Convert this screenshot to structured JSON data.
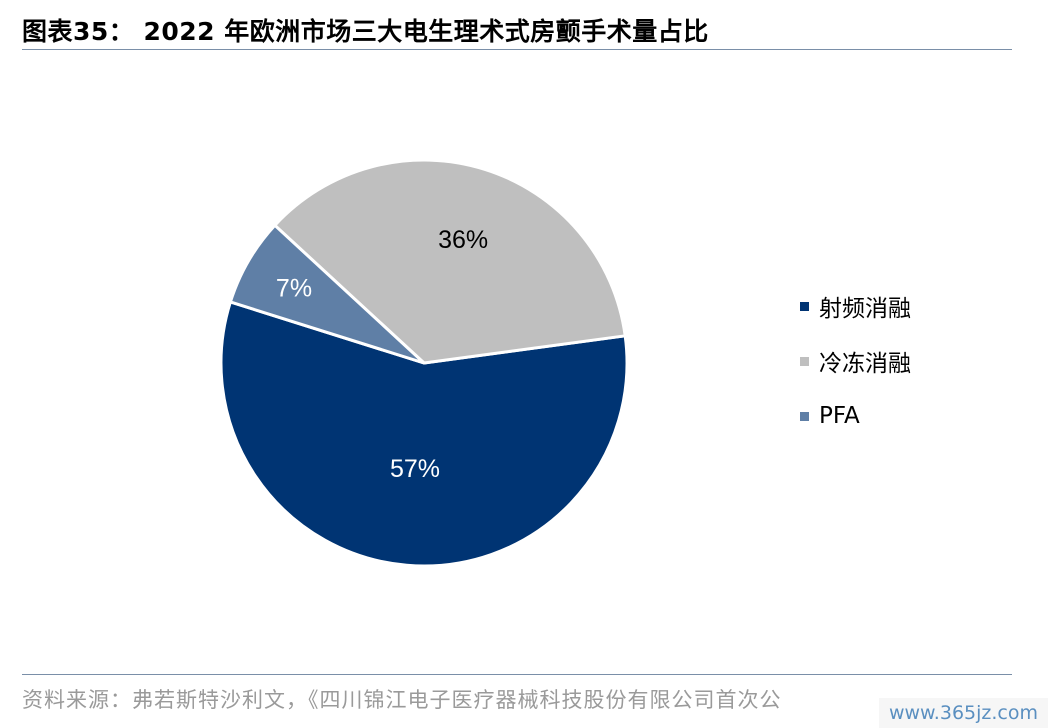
{
  "title": "图表35：  2022 年欧洲市场三大电生理术式房颤手术量占比",
  "source_note": "资料来源：弗若斯特沙利文，《四川锦江电子医疗器械科技股份有限公司首次公",
  "watermark": "www.365jz.com",
  "chart_data": {
    "type": "pie",
    "title": "2022 年欧洲市场三大电生理术式房颤手术量占比",
    "legend_position": "right",
    "slices": [
      {
        "name": "射频消融",
        "value": 57,
        "label": "57%",
        "color": "#003473",
        "label_color": "#ffffff"
      },
      {
        "name": "冷冻消融",
        "value": 36,
        "label": "36%",
        "color": "#bfbfbf",
        "label_color": "#000000"
      },
      {
        "name": "PFA",
        "value": 7,
        "label": "7%",
        "color": "#5f7fa6",
        "label_color": "#ffffff"
      }
    ]
  }
}
